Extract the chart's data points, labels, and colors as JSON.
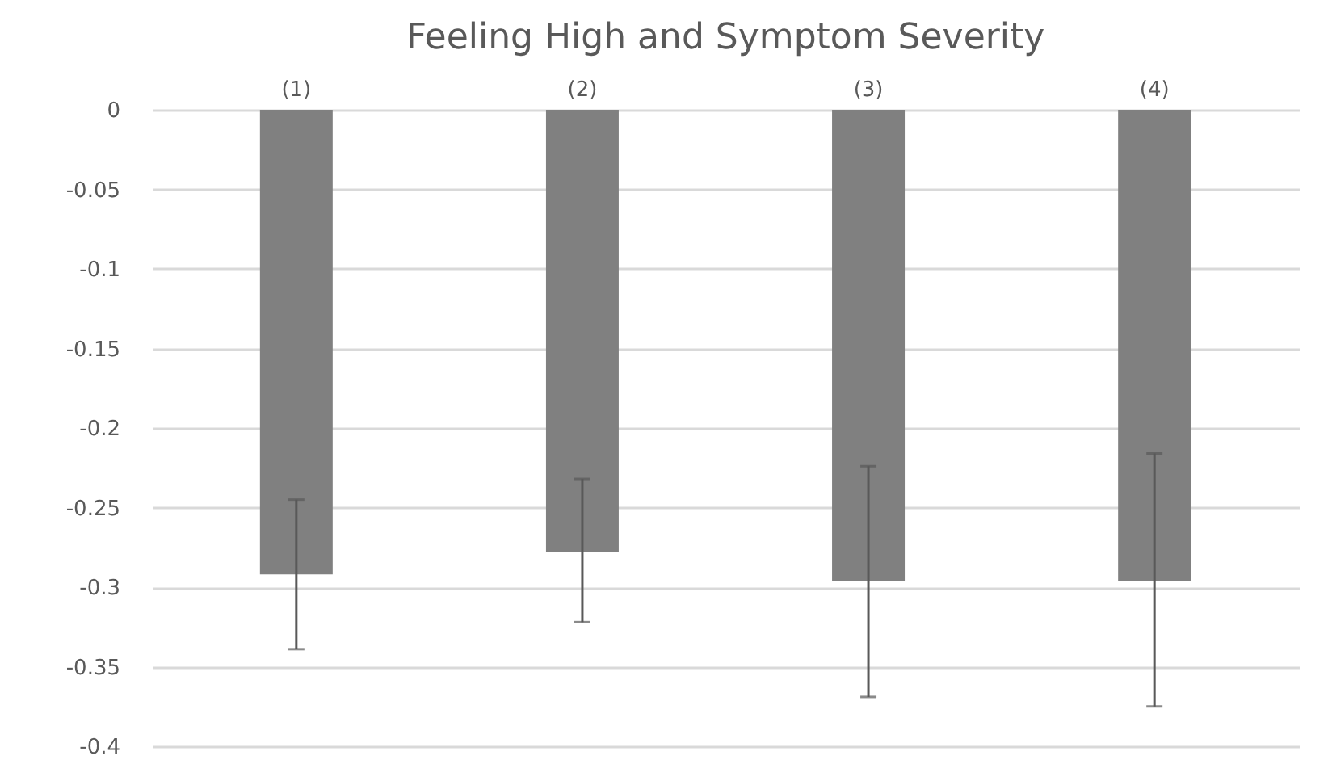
{
  "chart_data": {
    "type": "bar",
    "title": "Feeling High and Symptom Severity",
    "categories": [
      "(1)",
      "(2)",
      "(3)",
      "(4)"
    ],
    "values": [
      -0.292,
      -0.278,
      -0.296,
      -0.296
    ],
    "errors": [
      [
        -0.339,
        -0.245
      ],
      [
        -0.322,
        -0.232
      ],
      [
        -0.369,
        -0.224
      ],
      [
        -0.375,
        -0.216
      ]
    ],
    "color": "#808080",
    "ylim": [
      -0.4,
      0
    ],
    "yticks": [
      0,
      -0.05,
      -0.1,
      -0.15,
      -0.2,
      -0.25,
      -0.3,
      -0.35,
      -0.4
    ],
    "grid": "y"
  }
}
